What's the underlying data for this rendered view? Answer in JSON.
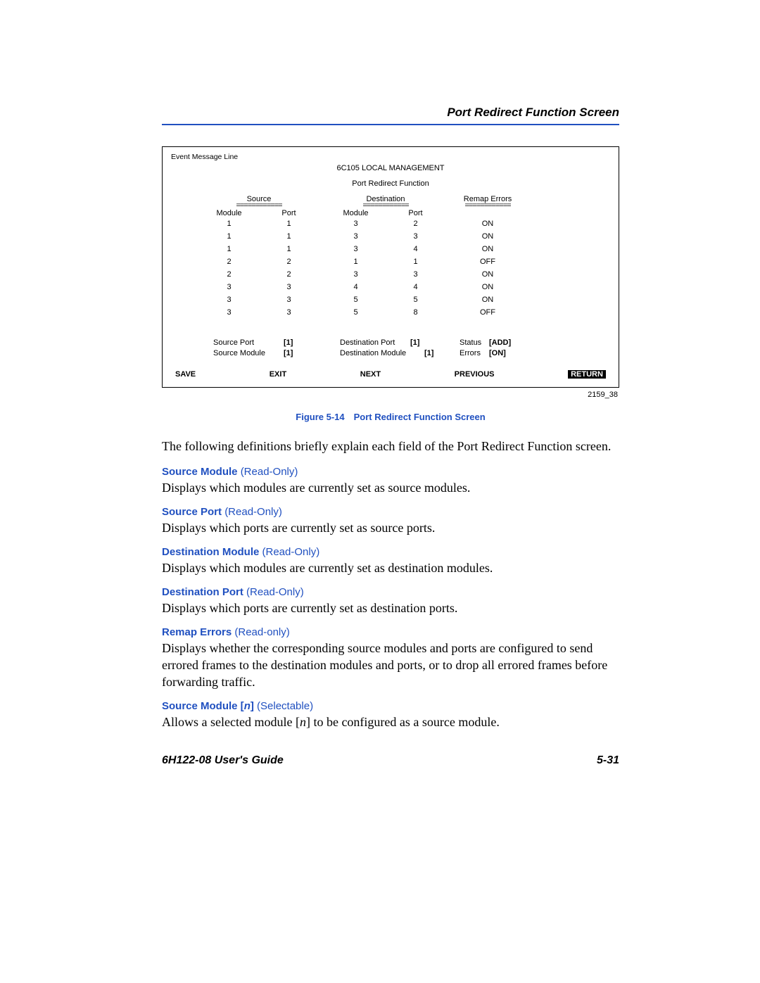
{
  "header": {
    "title": "Port Redirect Function Screen"
  },
  "screenshot": {
    "event_line": "Event Message Line",
    "system_title": "6C105 LOCAL MANAGEMENT",
    "screen_title": "Port Redirect Function",
    "columns": {
      "source": "Source",
      "destination": "Destination",
      "remap": "Remap Errors",
      "underline": "============",
      "module": "Module",
      "port": "Port"
    },
    "rows": [
      {
        "sm": "1",
        "sp": "1",
        "dm": "3",
        "dp": "2",
        "re": "ON"
      },
      {
        "sm": "1",
        "sp": "1",
        "dm": "3",
        "dp": "3",
        "re": "ON"
      },
      {
        "sm": "1",
        "sp": "1",
        "dm": "3",
        "dp": "4",
        "re": "ON"
      },
      {
        "sm": "2",
        "sp": "2",
        "dm": "1",
        "dp": "1",
        "re": "OFF"
      },
      {
        "sm": "2",
        "sp": "2",
        "dm": "3",
        "dp": "3",
        "re": "ON"
      },
      {
        "sm": "3",
        "sp": "3",
        "dm": "4",
        "dp": "4",
        "re": "ON"
      },
      {
        "sm": "3",
        "sp": "3",
        "dm": "5",
        "dp": "5",
        "re": "ON"
      },
      {
        "sm": "3",
        "sp": "3",
        "dm": "5",
        "dp": "8",
        "re": "OFF"
      }
    ],
    "controls": {
      "source_port_label": "Source Port",
      "source_port_val": "[1]",
      "source_module_label": "Source Module",
      "source_module_val": "[1]",
      "dest_port_label": "Destination Port",
      "dest_port_val": "[1]",
      "dest_module_label": "Destination Module",
      "dest_module_val": "[1]",
      "status_label": "Status",
      "status_val": "[ADD]",
      "errors_label": "Errors",
      "errors_val": "[ON]"
    },
    "buttons": {
      "save": "SAVE",
      "exit": "EXIT",
      "next": "NEXT",
      "previous": "PREVIOUS",
      "return": "RETURN"
    },
    "ref": "2159_38"
  },
  "figure_caption": "Figure 5-14 Port Redirect Function Screen",
  "intro": "The following definitions briefly explain each field of the Port Redirect Function screen.",
  "definitions": [
    {
      "title": "Source Module",
      "tag": "(Read-Only)",
      "body": "Displays which modules are currently set as source modules."
    },
    {
      "title": "Source Port",
      "tag": "(Read-Only)",
      "body": "Displays which ports are currently set as source ports."
    },
    {
      "title": "Destination Module",
      "tag": "(Read-Only)",
      "body": "Displays which modules are currently set as destination modules."
    },
    {
      "title": "Destination Port",
      "tag": "(Read-Only)",
      "body": "Displays which ports are currently set as destination ports."
    },
    {
      "title": "Remap Errors",
      "tag": "(Read-only)",
      "body": "Displays whether the corresponding source modules and ports are configured to send errored frames to the destination modules and ports, or to drop all errored frames before forwarding traffic."
    }
  ],
  "selectable": {
    "title_pre": "Source Module [",
    "title_n": "n",
    "title_post": "]",
    "tag": "(Selectable)",
    "body_pre": "Allows a selected module [",
    "body_n": "n",
    "body_post": "] to be configured as a source module."
  },
  "footer": {
    "left": "6H122-08 User's Guide",
    "right": "5-31"
  }
}
